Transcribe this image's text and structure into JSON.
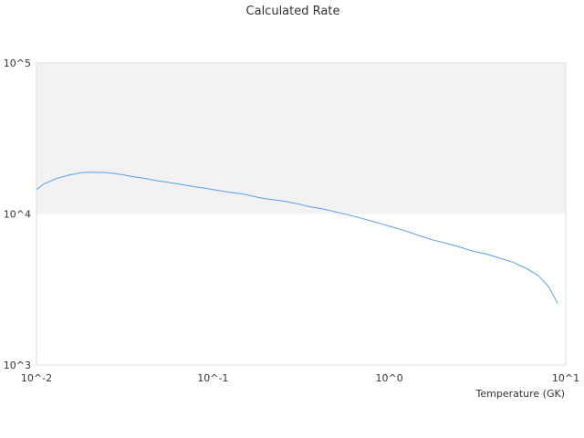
{
  "chart_data": {
    "type": "line",
    "title": "Calculated Rate",
    "xlabel": "Temperature (GK)",
    "ylabel": "",
    "x_scale": "log",
    "y_scale": "log",
    "xlim": [
      0.01,
      10
    ],
    "ylim": [
      1000,
      100000
    ],
    "x_ticks": [
      {
        "value": 0.01,
        "label": "10^-2"
      },
      {
        "value": 0.1,
        "label": "10^-1"
      },
      {
        "value": 1,
        "label": "10^0"
      },
      {
        "value": 10,
        "label": "10^1"
      }
    ],
    "y_ticks": [
      {
        "value": 1000,
        "label": "10^3"
      },
      {
        "value": 10000,
        "label": "10^4"
      },
      {
        "value": 100000,
        "label": "10^5"
      }
    ],
    "bands": [
      {
        "from": 10000,
        "to": 100000,
        "color": "#f2f2f2"
      }
    ],
    "grid": false,
    "legend": "none",
    "colors": {
      "series": "#5aa0e6",
      "band": "#f2f2f2",
      "frame": "#cccccc",
      "text": "#333333"
    },
    "series": [
      {
        "x": [
          0.01,
          0.011,
          0.013,
          0.015,
          0.018,
          0.02,
          0.025,
          0.03,
          0.035,
          0.04,
          0.05,
          0.06,
          0.07,
          0.08,
          0.09,
          0.1,
          0.12,
          0.15,
          0.18,
          0.2,
          0.25,
          0.3,
          0.35,
          0.4,
          0.45,
          0.5,
          0.6,
          0.7,
          0.8,
          0.9,
          1.0,
          1.25,
          1.5,
          1.75,
          2.0,
          2.5,
          3.0,
          3.5,
          4.0,
          5.0,
          6.0,
          7.0,
          8.0,
          9.0
        ],
        "values": [
          14500,
          15800,
          17200,
          18000,
          18800,
          18900,
          18800,
          18300,
          17700,
          17300,
          16500,
          16000,
          15500,
          15100,
          14800,
          14500,
          14000,
          13500,
          12900,
          12600,
          12200,
          11700,
          11200,
          10900,
          10600,
          10300,
          9800,
          9350,
          8950,
          8600,
          8300,
          7700,
          7150,
          6750,
          6500,
          6050,
          5650,
          5450,
          5200,
          4800,
          4350,
          3900,
          3300,
          2550
        ]
      }
    ]
  }
}
